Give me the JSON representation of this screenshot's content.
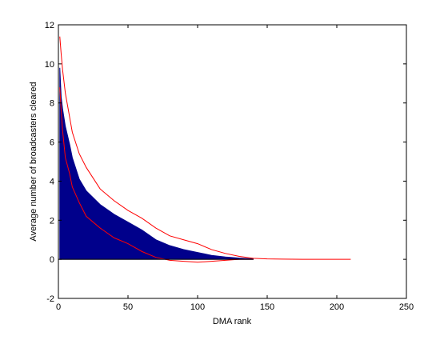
{
  "chart_data": {
    "type": "area",
    "title": "",
    "xlabel": "DMA rank",
    "ylabel": "Average number of broadcasters cleared",
    "xlim": [
      0,
      250
    ],
    "ylim": [
      -2,
      12
    ],
    "xticks": [
      0,
      50,
      100,
      150,
      200,
      250
    ],
    "yticks": [
      -2,
      0,
      2,
      4,
      6,
      8,
      10,
      12
    ],
    "grid": false,
    "legend": "none",
    "colors": {
      "area": "#00008B",
      "bounds": "#FF0000",
      "axis": "#000000"
    },
    "series": [
      {
        "kind": "area",
        "x": [
          1,
          2,
          3,
          5,
          8,
          10,
          15,
          20,
          30,
          40,
          50,
          60,
          70,
          80,
          90,
          100,
          110,
          120,
          130,
          140
        ],
        "values": [
          9.8,
          8.3,
          7.7,
          6.8,
          5.9,
          5.2,
          4.1,
          3.5,
          2.8,
          2.3,
          1.9,
          1.5,
          1.0,
          0.7,
          0.5,
          0.35,
          0.2,
          0.12,
          0.06,
          0.02
        ]
      },
      {
        "kind": "line",
        "x": [
          1,
          2,
          3,
          5,
          8,
          10,
          15,
          20,
          30,
          40,
          50,
          60,
          70,
          80,
          90,
          100,
          110,
          120,
          130,
          140,
          150,
          160,
          175,
          200,
          210
        ],
        "values": [
          11.4,
          10.5,
          9.7,
          8.5,
          7.3,
          6.5,
          5.4,
          4.7,
          3.6,
          3.0,
          2.5,
          2.1,
          1.6,
          1.2,
          1.0,
          0.8,
          0.5,
          0.3,
          0.15,
          0.05,
          0.02,
          0.01,
          0.0,
          0.0,
          0.0
        ]
      },
      {
        "kind": "line",
        "x": [
          1,
          2,
          3,
          5,
          8,
          10,
          15,
          20,
          30,
          40,
          50,
          60,
          70,
          80,
          90,
          100,
          110,
          120,
          130,
          140
        ],
        "values": [
          8.8,
          7.6,
          6.6,
          5.2,
          4.4,
          3.7,
          2.9,
          2.2,
          1.6,
          1.1,
          0.8,
          0.4,
          0.1,
          -0.05,
          -0.1,
          -0.15,
          -0.1,
          -0.05,
          0.0,
          0.0
        ]
      }
    ]
  }
}
